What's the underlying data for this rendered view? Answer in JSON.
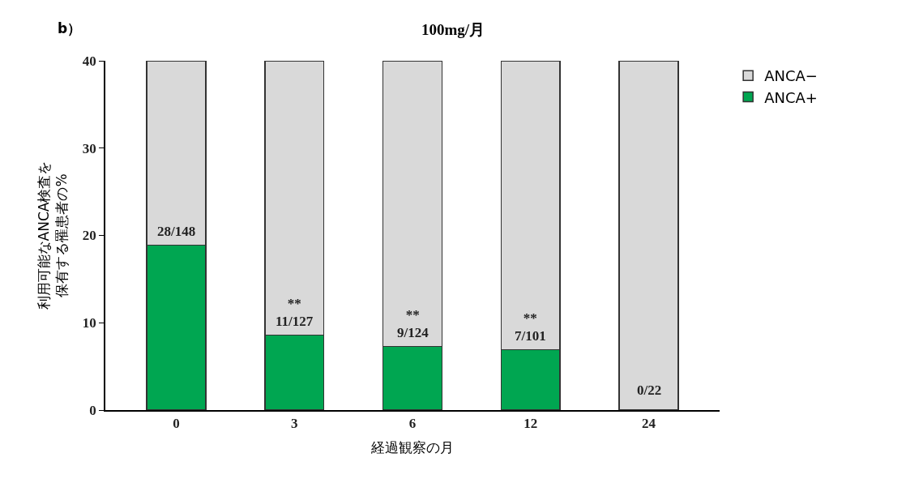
{
  "chart_data": {
    "type": "bar",
    "title": "100mg/月",
    "xlabel": "経過観察の月",
    "ylabel": "利用可能なANCA検査を保有する罹患者の%",
    "categories": [
      "0",
      "3",
      "6",
      "12",
      "24"
    ],
    "stacked": true,
    "series": [
      {
        "name": "ANCA+",
        "color": "#00a651",
        "values": [
          18.9,
          8.6,
          7.3,
          6.9,
          0
        ],
        "value_labels": [
          "28/148",
          "**\n11/127",
          "**\n9/124",
          "**\n7/101",
          null
        ]
      },
      {
        "name": "ANCA−",
        "color": "#d9d9d9",
        "values": [
          21.1,
          31.4,
          32.7,
          33.1,
          40
        ],
        "value_labels": [
          null,
          null,
          null,
          null,
          "0/22"
        ]
      }
    ],
    "ylim": [
      0,
      40
    ],
    "yticks": [
      0,
      10,
      20,
      30,
      40
    ],
    "legend": "top right",
    "annotations": [
      "b）"
    ]
  }
}
